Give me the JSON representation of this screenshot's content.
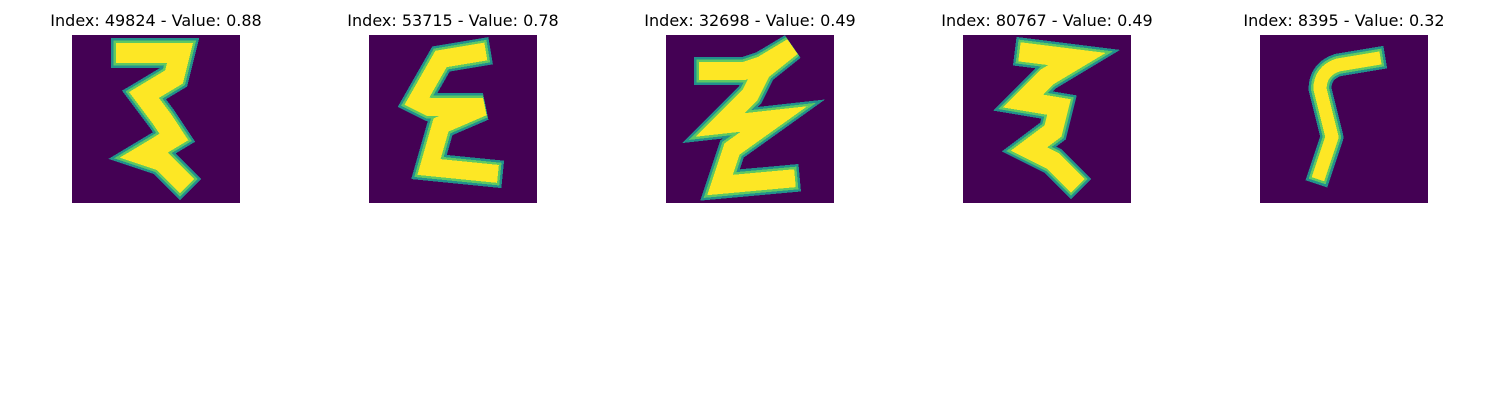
{
  "panels": [
    {
      "title": "Index: 49824 - Value: 0.88",
      "digit_icon": "zigzag-digit-icon"
    },
    {
      "title": "Index: 53715 - Value: 0.78",
      "digit_icon": "epsilon-digit-icon"
    },
    {
      "title": "Index: 32698 - Value: 0.49",
      "digit_icon": "epsilon-digit-icon"
    },
    {
      "title": "Index: 80767 - Value: 0.49",
      "digit_icon": "zigzag-digit-icon"
    },
    {
      "title": "Index: 8395 - Value: 0.32",
      "digit_icon": "s-curve-digit-icon"
    }
  ],
  "colors": {
    "background": "#440154",
    "stroke_core": "#fde725",
    "stroke_edge": "#21918c",
    "stroke_mid": "#5ec962"
  }
}
